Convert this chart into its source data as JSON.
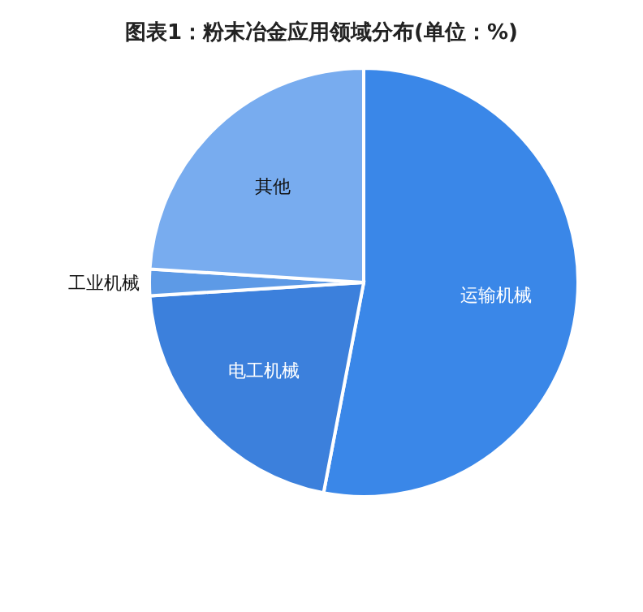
{
  "chart_data": {
    "type": "pie",
    "title": "图表1：粉末冶金应用领域分布(单位：%)",
    "categories": [
      "运输机械",
      "电工机械",
      "工业机械",
      "其他"
    ],
    "values": [
      53,
      21,
      2,
      24
    ],
    "colors": [
      "#3a87e8",
      "#3c80dc",
      "#5d9ae6",
      "#78acef"
    ]
  }
}
